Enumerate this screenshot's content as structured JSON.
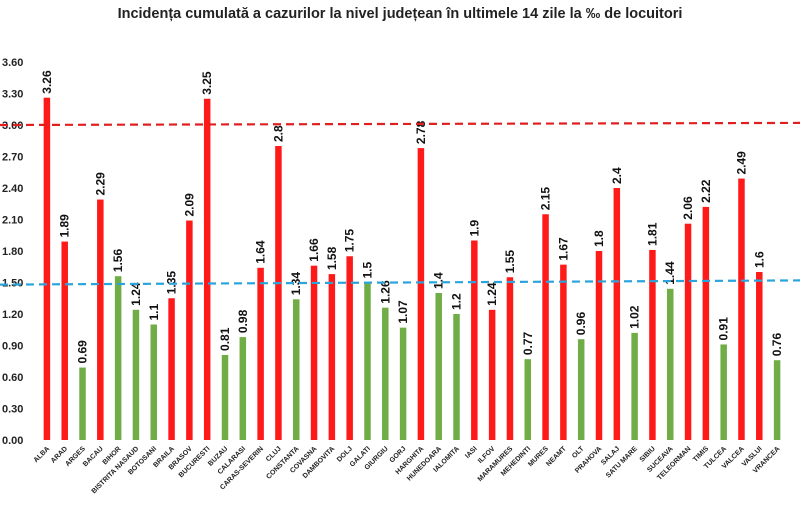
{
  "chart_data": {
    "type": "bar",
    "title": "Incidența cumulată a cazurilor la nivel județean în ultimele 14 zile la ‰ de locuitori",
    "xlabel": "",
    "ylabel": "",
    "ylim": [
      0,
      3.6
    ],
    "yticks": [
      "0.00",
      "0.30",
      "0.60",
      "0.90",
      "1.20",
      "1.50",
      "1.80",
      "2.10",
      "2.40",
      "2.70",
      "3.00",
      "3.30",
      "3.60"
    ],
    "grid": false,
    "thresholds": [
      {
        "name": "upper",
        "value": 3.0,
        "color": "#e02020",
        "value_end": 3.02
      },
      {
        "name": "lower",
        "value": 1.48,
        "color": "#2aa4dc",
        "value_end": 1.52
      }
    ],
    "colors": {
      "above": "#ff1a1a",
      "below": "#70ad47"
    },
    "categories": [
      "ALBA",
      "ARAD",
      "ARGES",
      "BACAU",
      "BIHOR",
      "BISTRITA NASAUD",
      "BOTOSANI",
      "BRAILA",
      "BRASOV",
      "BUCURESTI",
      "BUZAU",
      "CALARASI",
      "CARAS-SEVERIN",
      "CLUJ",
      "CONSTANTA",
      "COVASNA",
      "DAMBOVITA",
      "DOLJ",
      "GALATI",
      "GIURGIU",
      "GORJ",
      "HARGHITA",
      "HUNEDOARA",
      "IALOMITA",
      "IASI",
      "ILFOV",
      "MARAMURES",
      "MEHEDINTI",
      "MURES",
      "NEAMT",
      "OLT",
      "PRAHOVA",
      "SALAJ",
      "SATU MARE",
      "SIBIU",
      "SUCEAVA",
      "TELEORMAN",
      "TIMIS",
      "TULCEA",
      "VALCEA",
      "VASLUI",
      "VRANCEA"
    ],
    "values": [
      3.26,
      1.89,
      0.69,
      2.29,
      1.56,
      1.24,
      1.1,
      1.35,
      2.09,
      3.25,
      0.81,
      0.98,
      1.64,
      2.8,
      1.34,
      1.66,
      1.58,
      1.75,
      1.5,
      1.26,
      1.07,
      2.78,
      1.4,
      1.2,
      1.9,
      1.24,
      1.55,
      0.77,
      2.15,
      1.67,
      0.96,
      1.8,
      2.4,
      1.02,
      1.81,
      1.44,
      2.06,
      2.22,
      0.91,
      2.49,
      1.6,
      0.76
    ],
    "labels": [
      "3.26",
      "1.89",
      "0.69",
      "2.29",
      "1.56",
      "1.24",
      "1.1",
      "1.35",
      "2.09",
      "3.25",
      "0.81",
      "0.98",
      "1.64",
      "2.8",
      "1.34",
      "1.66",
      "1.58",
      "1.75",
      "1.5",
      "1.26",
      "1.07",
      "2.78",
      "1.4",
      "1.2",
      "1.9",
      "1.24",
      "1.55",
      "0.77",
      "2.15",
      "1.67",
      "0.96",
      "1.8",
      "2.4",
      "1.02",
      "1.81",
      "1.44",
      "2.06",
      "2.22",
      "0.91",
      "2.49",
      "1.6",
      "0.76"
    ],
    "bar_colors": [
      "above",
      "above",
      "below",
      "above",
      "below",
      "below",
      "below",
      "above",
      "above",
      "above",
      "below",
      "below",
      "above",
      "above",
      "below",
      "above",
      "above",
      "above",
      "below",
      "below",
      "below",
      "above",
      "below",
      "below",
      "above",
      "above",
      "above",
      "below",
      "above",
      "above",
      "below",
      "above",
      "above",
      "below",
      "above",
      "below",
      "above",
      "above",
      "below",
      "above",
      "above",
      "below"
    ]
  }
}
